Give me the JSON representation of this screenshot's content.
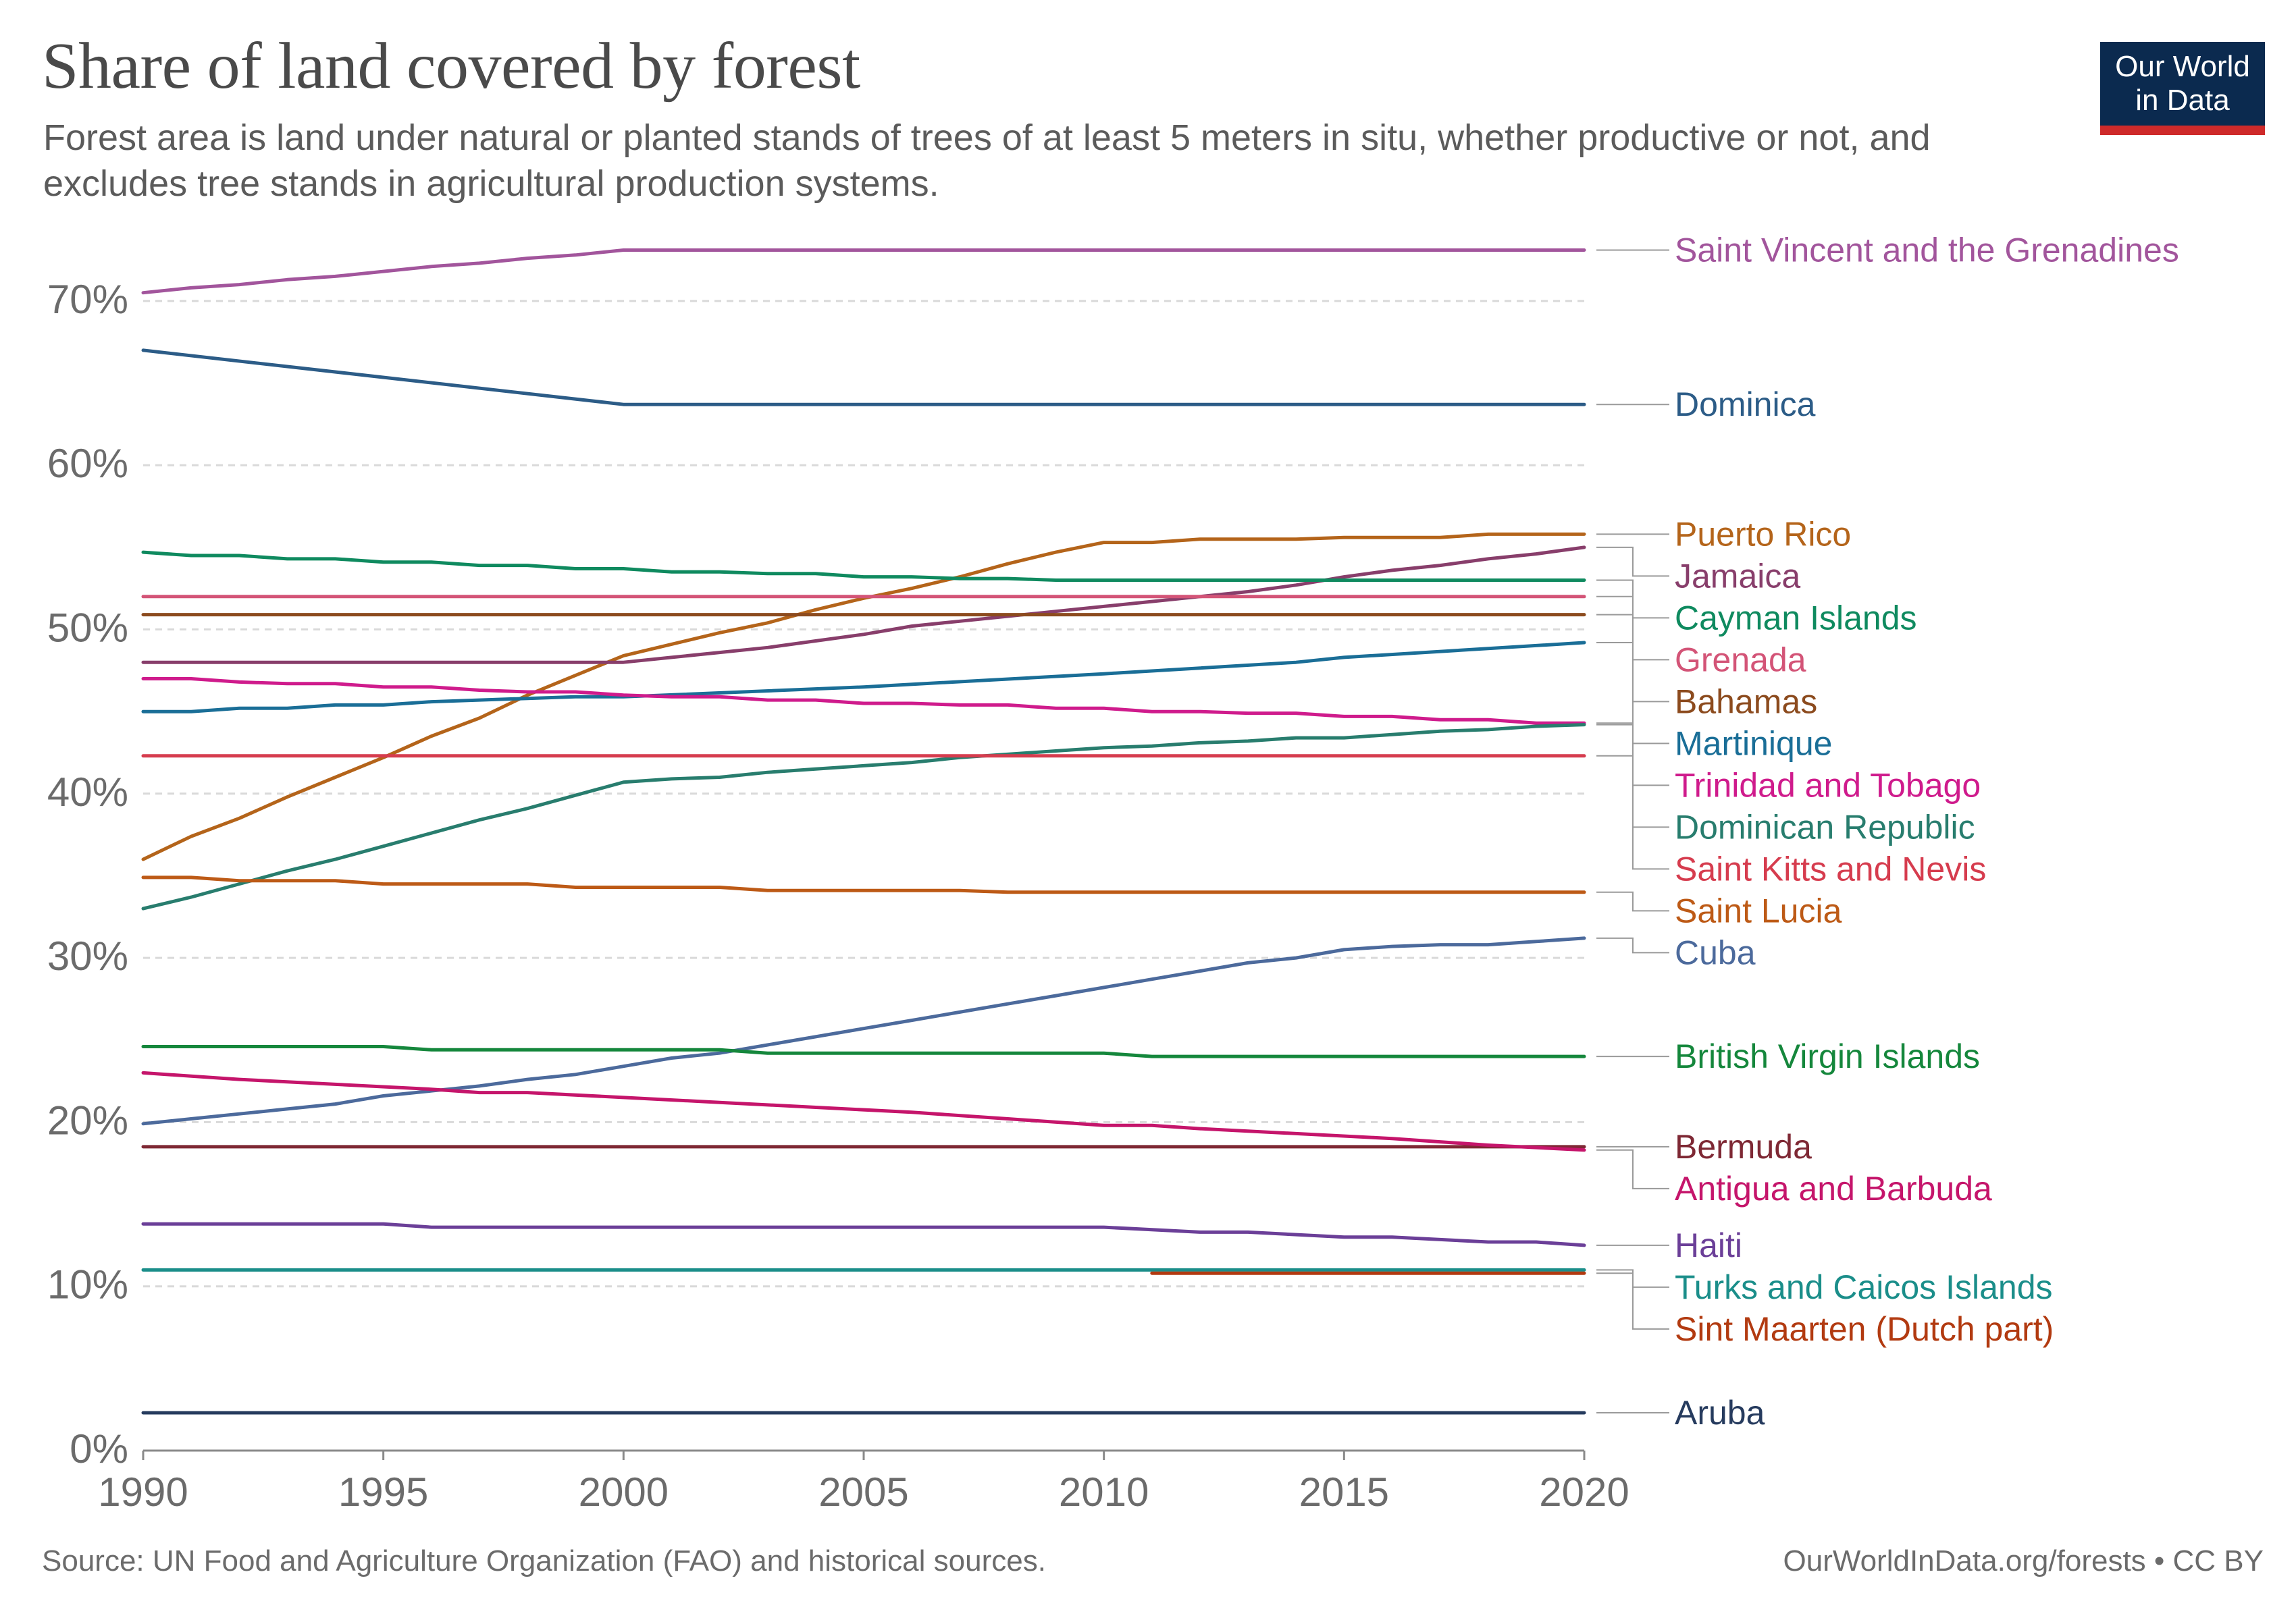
{
  "header": {
    "title": "Share of land covered by forest",
    "subtitle": "Forest area is land under natural or planted stands of trees of at least 5 meters in situ, whether productive or not, and excludes tree stands in agricultural production systems.",
    "logo_line1": "Our World",
    "logo_line2": "in Data"
  },
  "footer": {
    "source": "Source: UN Food and Agriculture Organization (FAO) and historical sources.",
    "license": "OurWorldInData.org/forests • CC BY"
  },
  "chart_data": {
    "type": "line",
    "title": "Share of land covered by forest",
    "subtitle": "Forest area is land under natural or planted stands of trees of at least 5 meters in situ, whether productive or not, and excludes tree stands in agricultural production systems.",
    "xlabel": "",
    "ylabel": "",
    "xlim": [
      1990,
      2020
    ],
    "ylim": [
      0,
      70
    ],
    "x_ticks": [
      1990,
      1995,
      2000,
      2005,
      2010,
      2015,
      2020
    ],
    "y_ticks": [
      0,
      10,
      20,
      30,
      40,
      50,
      60,
      70
    ],
    "y_tick_format": "percent",
    "grid": "horizontal dashed",
    "legend": "line-end labels on the right",
    "series": [
      {
        "name": "Saint Vincent and the Grenadines",
        "color": "#a2559c",
        "x": [
          1990,
          1991,
          1992,
          1993,
          1994,
          1995,
          1996,
          1997,
          1998,
          1999,
          2000,
          2005,
          2010,
          2015,
          2020
        ],
        "y": [
          70.5,
          70.8,
          71.0,
          71.3,
          71.5,
          71.8,
          72.1,
          72.3,
          72.6,
          72.8,
          73.1,
          73.1,
          73.1,
          73.1,
          73.1
        ]
      },
      {
        "name": "Dominica",
        "color": "#2c5c87",
        "x": [
          1990,
          2000,
          2005,
          2010,
          2015,
          2020
        ],
        "y": [
          67.0,
          63.7,
          63.7,
          63.7,
          63.7,
          63.7
        ]
      },
      {
        "name": "Puerto Rico",
        "color": "#b4641a",
        "x": [
          1990,
          1991,
          1992,
          1993,
          1994,
          1995,
          1996,
          1997,
          1998,
          1999,
          2000,
          2001,
          2002,
          2003,
          2004,
          2005,
          2006,
          2007,
          2008,
          2009,
          2010,
          2011,
          2012,
          2013,
          2014,
          2015,
          2016,
          2017,
          2018,
          2019,
          2020
        ],
        "y": [
          36.0,
          37.4,
          38.5,
          39.8,
          41.0,
          42.2,
          43.5,
          44.6,
          46.0,
          47.2,
          48.4,
          49.1,
          49.8,
          50.4,
          51.2,
          51.9,
          52.5,
          53.2,
          54.0,
          54.7,
          55.3,
          55.3,
          55.5,
          55.5,
          55.5,
          55.6,
          55.6,
          55.6,
          55.8,
          55.8,
          55.8
        ]
      },
      {
        "name": "Jamaica",
        "color": "#883e6b",
        "x": [
          1990,
          1995,
          2000,
          2001,
          2002,
          2003,
          2004,
          2005,
          2006,
          2007,
          2008,
          2009,
          2010,
          2011,
          2012,
          2013,
          2014,
          2015,
          2016,
          2017,
          2018,
          2019,
          2020
        ],
        "y": [
          48.0,
          48.0,
          48.0,
          48.3,
          48.6,
          48.9,
          49.3,
          49.7,
          50.2,
          50.5,
          50.8,
          51.1,
          51.4,
          51.7,
          52.0,
          52.3,
          52.7,
          53.2,
          53.6,
          53.9,
          54.3,
          54.6,
          55.0
        ]
      },
      {
        "name": "Cayman Islands",
        "color": "#0f8a5f",
        "x": [
          1990,
          1991,
          1992,
          1993,
          1994,
          1995,
          1996,
          1997,
          1998,
          1999,
          2000,
          2001,
          2002,
          2003,
          2004,
          2005,
          2006,
          2007,
          2008,
          2009,
          2010,
          2015,
          2020
        ],
        "y": [
          54.7,
          54.5,
          54.5,
          54.3,
          54.3,
          54.1,
          54.1,
          53.9,
          53.9,
          53.7,
          53.7,
          53.5,
          53.5,
          53.4,
          53.4,
          53.2,
          53.2,
          53.1,
          53.1,
          53.0,
          53.0,
          53.0,
          53.0
        ]
      },
      {
        "name": "Grenada",
        "color": "#d35477",
        "x": [
          1990,
          2020
        ],
        "y": [
          52.0,
          52.0
        ]
      },
      {
        "name": "Bahamas",
        "color": "#8c4b1e",
        "x": [
          1990,
          2020
        ],
        "y": [
          50.9,
          50.9
        ]
      },
      {
        "name": "Martinique",
        "color": "#1a6e97",
        "x": [
          1990,
          1991,
          1992,
          1993,
          1994,
          1995,
          1996,
          1997,
          1998,
          1999,
          2000,
          2005,
          2010,
          2014,
          2015,
          2020
        ],
        "y": [
          45.0,
          45.0,
          45.2,
          45.2,
          45.4,
          45.4,
          45.6,
          45.7,
          45.8,
          45.9,
          45.9,
          46.5,
          47.3,
          48.0,
          48.3,
          49.2
        ]
      },
      {
        "name": "Trinidad and Tobago",
        "color": "#cf1b8c",
        "x": [
          1990,
          1991,
          1992,
          1993,
          1994,
          1995,
          1996,
          1997,
          1998,
          1999,
          2000,
          2001,
          2002,
          2003,
          2004,
          2005,
          2006,
          2007,
          2008,
          2009,
          2010,
          2011,
          2012,
          2013,
          2014,
          2015,
          2016,
          2017,
          2018,
          2019,
          2020
        ],
        "y": [
          47.0,
          47.0,
          46.8,
          46.7,
          46.7,
          46.5,
          46.5,
          46.3,
          46.2,
          46.2,
          46.0,
          45.9,
          45.9,
          45.7,
          45.7,
          45.5,
          45.5,
          45.4,
          45.4,
          45.2,
          45.2,
          45.0,
          45.0,
          44.9,
          44.9,
          44.7,
          44.7,
          44.5,
          44.5,
          44.3,
          44.3
        ]
      },
      {
        "name": "Dominican Republic",
        "color": "#287d6e",
        "x": [
          1990,
          1991,
          1992,
          1993,
          1994,
          1995,
          1996,
          1997,
          1998,
          1999,
          2000,
          2001,
          2002,
          2003,
          2004,
          2005,
          2006,
          2007,
          2008,
          2009,
          2010,
          2011,
          2012,
          2013,
          2014,
          2015,
          2016,
          2017,
          2018,
          2019,
          2020
        ],
        "y": [
          33.0,
          33.7,
          34.5,
          35.3,
          36.0,
          36.8,
          37.6,
          38.4,
          39.1,
          39.9,
          40.7,
          40.9,
          41.0,
          41.3,
          41.5,
          41.7,
          41.9,
          42.2,
          42.4,
          42.6,
          42.8,
          42.9,
          43.1,
          43.2,
          43.4,
          43.4,
          43.6,
          43.8,
          43.9,
          44.1,
          44.2
        ]
      },
      {
        "name": "Saint Kitts and Nevis",
        "color": "#d63c4e",
        "x": [
          1990,
          2020
        ],
        "y": [
          42.3,
          42.3
        ]
      },
      {
        "name": "Saint Lucia",
        "color": "#bd5a16",
        "x": [
          1990,
          1991,
          1992,
          1993,
          1994,
          1995,
          1996,
          1997,
          1998,
          1999,
          2000,
          2001,
          2002,
          2003,
          2004,
          2005,
          2006,
          2007,
          2008,
          2009,
          2010,
          2015,
          2020
        ],
        "y": [
          34.9,
          34.9,
          34.7,
          34.7,
          34.7,
          34.5,
          34.5,
          34.5,
          34.5,
          34.3,
          34.3,
          34.3,
          34.3,
          34.1,
          34.1,
          34.1,
          34.1,
          34.1,
          34.0,
          34.0,
          34.0,
          34.0,
          34.0
        ]
      },
      {
        "name": "Cuba",
        "color": "#4c6a9c",
        "x": [
          1990,
          1991,
          1992,
          1993,
          1994,
          1995,
          1996,
          1997,
          1998,
          1999,
          2000,
          2001,
          2002,
          2003,
          2004,
          2005,
          2006,
          2007,
          2008,
          2009,
          2010,
          2011,
          2012,
          2013,
          2014,
          2015,
          2016,
          2017,
          2018,
          2019,
          2020
        ],
        "y": [
          19.9,
          20.2,
          20.5,
          20.8,
          21.1,
          21.6,
          21.9,
          22.2,
          22.6,
          22.9,
          23.4,
          23.9,
          24.2,
          24.7,
          25.2,
          25.7,
          26.2,
          26.7,
          27.2,
          27.7,
          28.2,
          28.7,
          29.2,
          29.7,
          30.0,
          30.5,
          30.7,
          30.8,
          30.8,
          31.0,
          31.2
        ]
      },
      {
        "name": "British Virgin Islands",
        "color": "#15873c",
        "x": [
          1990,
          1995,
          1996,
          2000,
          2002,
          2003,
          2010,
          2011,
          2020
        ],
        "y": [
          24.6,
          24.6,
          24.4,
          24.4,
          24.4,
          24.2,
          24.2,
          24.0,
          24.0
        ]
      },
      {
        "name": "Bermuda",
        "color": "#7e2834",
        "x": [
          1990,
          2020
        ],
        "y": [
          18.5,
          18.5
        ]
      },
      {
        "name": "Antigua and Barbuda",
        "color": "#c5156b",
        "x": [
          1990,
          1992,
          1994,
          1996,
          1997,
          1998,
          2000,
          2002,
          2004,
          2006,
          2008,
          2010,
          2011,
          2012,
          2014,
          2016,
          2018,
          2020
        ],
        "y": [
          23.0,
          22.6,
          22.3,
          22.0,
          21.8,
          21.8,
          21.5,
          21.2,
          20.9,
          20.6,
          20.2,
          19.8,
          19.8,
          19.6,
          19.3,
          19.0,
          18.6,
          18.3
        ]
      },
      {
        "name": "Haiti",
        "color": "#6b3f98",
        "x": [
          1990,
          1995,
          1996,
          2000,
          2005,
          2010,
          2012,
          2013,
          2015,
          2016,
          2018,
          2019,
          2020
        ],
        "y": [
          13.8,
          13.8,
          13.6,
          13.6,
          13.6,
          13.6,
          13.3,
          13.3,
          13.0,
          13.0,
          12.7,
          12.7,
          12.5
        ]
      },
      {
        "name": "Turks and Caicos Islands",
        "color": "#1b8e8a",
        "x": [
          1990,
          2020
        ],
        "y": [
          11.0,
          11.0
        ]
      },
      {
        "name": "Sint Maarten (Dutch part)",
        "color": "#b23a10",
        "x": [
          2011,
          2020
        ],
        "y": [
          10.8,
          10.8
        ]
      },
      {
        "name": "Aruba",
        "color": "#263b5e",
        "x": [
          1990,
          2020
        ],
        "y": [
          2.3,
          2.3
        ]
      }
    ]
  }
}
